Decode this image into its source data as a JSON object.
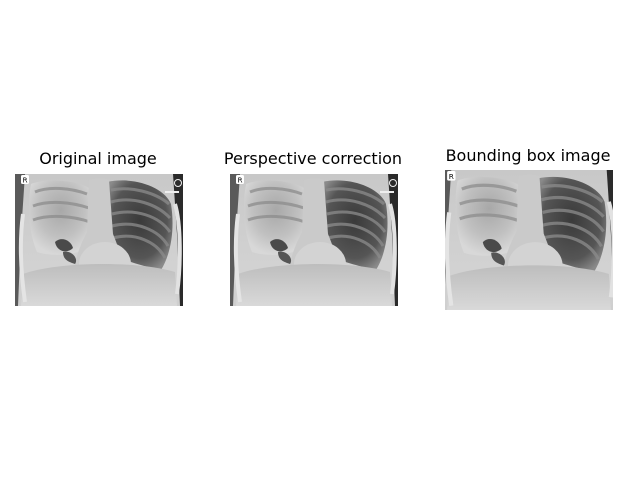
{
  "figure": {
    "panels": [
      {
        "title": "Original image",
        "marker_label": "R",
        "has_corner_circle": true,
        "has_corner_text": true
      },
      {
        "title": "Perspective correction",
        "marker_label": "R",
        "has_corner_circle": true,
        "has_corner_text": true
      },
      {
        "title": "Bounding box image",
        "marker_label": "R",
        "has_corner_circle": false,
        "has_corner_text": false
      }
    ]
  }
}
